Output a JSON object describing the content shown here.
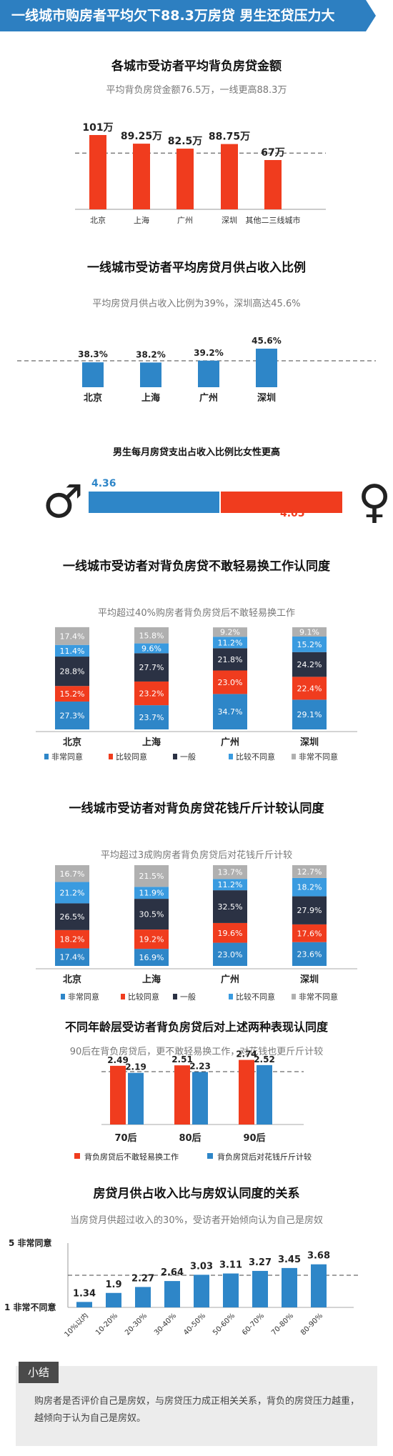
{
  "header": {
    "title": "一线城市购房者平均欠下88.3万房贷 男生还贷压力大"
  },
  "sections": {
    "s1": {
      "title": "各城市受访者平均背负房贷金额",
      "subtitle": "平均背负房贷金额76.5万，一线更高88.3万"
    },
    "s2": {
      "title": "一线城市受访者平均房贷月供占收入比例",
      "subtitle": "平均房贷月供占收入比例为39%，深圳高达45.6%"
    },
    "s3": {
      "title": "男生每月房贷支出占收入比例比女性更高"
    },
    "s4": {
      "title": "一线城市受访者对背负房贷不敢轻易换工作认同度",
      "subtitle": "平均超过40%购房者背负房贷后不敢轻易换工作"
    },
    "s5": {
      "title": "一线城市受访者对背负房贷花钱斤斤计较认同度",
      "subtitle": "平均超过3成购房者背负房贷后对花钱斤斤计较"
    },
    "s6": {
      "title": "不同年龄层受访者背负房贷后对上述两种表现认同度",
      "subtitle": "90后在背负房贷后，更不敢轻易换工作，对花钱也更斤斤计较"
    },
    "s7": {
      "title": "房贷月供占收入比与房奴认同度的关系",
      "subtitle": "当房贷月供超过收入的30%，受访者开始倾向认为自己是房奴"
    }
  },
  "summary": {
    "tag": "小结",
    "text": "购房者是否评价自己是房奴，与房贷压力成正相关关系，背负的房贷压力越重，越倾向于认为自己是房奴。"
  },
  "colors": {
    "header": "#2d7fc1",
    "red": "#f03c1e",
    "blue": "#2e86c8",
    "lightblue": "#3a9be0",
    "navy": "#2b3244",
    "grey": "#b0b0b0",
    "dash": "#444444"
  },
  "chart_data": [
    {
      "id": "debt",
      "type": "bar",
      "categories": [
        "北京",
        "上海",
        "广州",
        "深圳",
        "其他二三线城市"
      ],
      "values": [
        101,
        89.25,
        82.5,
        88.75,
        67
      ],
      "value_labels": [
        "101万",
        "89.25万",
        "82.5万",
        "88.75万",
        "67万"
      ],
      "reference_line": 76.5,
      "unit": "万"
    },
    {
      "id": "ratio",
      "type": "bar",
      "categories": [
        "北京",
        "上海",
        "广州",
        "深圳"
      ],
      "values": [
        38.3,
        38.2,
        39.2,
        45.6
      ],
      "value_labels": [
        "38.3%",
        "38.2%",
        "39.2%",
        "45.6%"
      ],
      "reference_line": 39
    },
    {
      "id": "gender",
      "type": "bar",
      "categories": [
        "男",
        "女"
      ],
      "values": [
        4.36,
        4.05
      ],
      "value_labels": [
        "4.36",
        "4.05"
      ],
      "symbols": [
        "♂",
        "♀"
      ]
    },
    {
      "id": "job",
      "type": "bar",
      "stacked": true,
      "categories": [
        "北京",
        "上海",
        "广州",
        "深圳"
      ],
      "series": [
        {
          "name": "非常同意",
          "values": [
            27.3,
            23.7,
            34.7,
            29.1
          ]
        },
        {
          "name": "比较同意",
          "values": [
            15.2,
            23.2,
            23.0,
            22.4
          ]
        },
        {
          "name": "一般",
          "values": [
            28.8,
            27.7,
            21.8,
            24.2
          ]
        },
        {
          "name": "比较不同意",
          "values": [
            11.4,
            9.6,
            11.2,
            15.2
          ]
        },
        {
          "name": "非常不同意",
          "values": [
            17.4,
            15.8,
            9.2,
            9.1
          ]
        }
      ]
    },
    {
      "id": "spend",
      "type": "bar",
      "stacked": true,
      "categories": [
        "北京",
        "上海",
        "广州",
        "深圳"
      ],
      "series": [
        {
          "name": "非常同意",
          "values": [
            17.4,
            16.9,
            23.0,
            23.6
          ]
        },
        {
          "name": "比较同意",
          "values": [
            18.2,
            19.2,
            19.6,
            17.6
          ]
        },
        {
          "name": "一般",
          "values": [
            26.5,
            30.5,
            32.5,
            27.9
          ]
        },
        {
          "name": "比较不同意",
          "values": [
            21.2,
            11.9,
            11.2,
            18.2
          ]
        },
        {
          "name": "非常不同意",
          "values": [
            16.7,
            21.5,
            13.7,
            12.7
          ]
        }
      ]
    },
    {
      "id": "age",
      "type": "bar",
      "categories": [
        "70后",
        "80后",
        "90后"
      ],
      "series": [
        {
          "name": "背负房贷后不敢轻易换工作",
          "values": [
            2.49,
            2.51,
            2.74
          ]
        },
        {
          "name": "背负房贷后对花钱斤斤计较",
          "values": [
            2.19,
            2.23,
            2.52
          ]
        }
      ]
    },
    {
      "id": "slave",
      "type": "bar",
      "categories": [
        "10%以内",
        "10-20%",
        "20-30%",
        "30-40%",
        "40-50%",
        "50-60%",
        "60-70%",
        "70-80%",
        "80-90%"
      ],
      "values": [
        1.34,
        1.9,
        2.27,
        2.64,
        3.03,
        3.11,
        3.27,
        3.45,
        3.68
      ],
      "ylim": [
        1,
        5
      ],
      "ytick_labels": [
        "5 非常同意",
        "1 非常不同意"
      ]
    }
  ]
}
